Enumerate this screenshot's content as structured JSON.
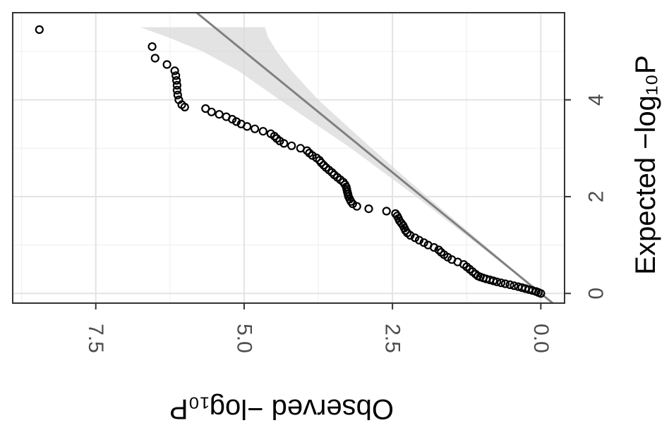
{
  "chart_data": {
    "type": "scatter",
    "title": "",
    "orientation": "rotated 90 degrees; observed axis runs horizontally (decreasing to the right), expected axis runs vertically on the right side",
    "xlabel": "Expected −log₁₀P",
    "ylabel": "Observed −log₁₀P",
    "xlim": [
      -0.2,
      5.8
    ],
    "ylim": [
      -0.4,
      8.9
    ],
    "x_ticks": [
      "0",
      "2",
      "4"
    ],
    "y_ticks": [
      "0.0",
      "2.5",
      "5.0",
      "7.5"
    ],
    "grid": true,
    "legend": "none",
    "reference_line": {
      "slope": 1,
      "intercept": 0,
      "color": "#808080"
    },
    "confidence_band": {
      "color": "#d9d9d9",
      "x": [
        0.0,
        1.0,
        2.0,
        3.0,
        4.0,
        4.6,
        5.0,
        5.3,
        5.5
      ],
      "lower": [
        0.0,
        0.95,
        1.92,
        2.85,
        3.75,
        4.2,
        4.45,
        4.6,
        4.65
      ],
      "upper": [
        0.0,
        1.05,
        2.1,
        3.2,
        4.4,
        5.1,
        5.7,
        6.3,
        6.75
      ]
    },
    "series": [
      {
        "marker": "open-circle",
        "color": "#000000",
        "points": [
          [
            0.0,
            0.0
          ],
          [
            0.02,
            0.04
          ],
          [
            0.04,
            0.08
          ],
          [
            0.06,
            0.14
          ],
          [
            0.08,
            0.2
          ],
          [
            0.1,
            0.26
          ],
          [
            0.12,
            0.32
          ],
          [
            0.14,
            0.38
          ],
          [
            0.16,
            0.45
          ],
          [
            0.18,
            0.52
          ],
          [
            0.2,
            0.6
          ],
          [
            0.22,
            0.67
          ],
          [
            0.24,
            0.74
          ],
          [
            0.26,
            0.8
          ],
          [
            0.28,
            0.86
          ],
          [
            0.3,
            0.92
          ],
          [
            0.32,
            0.97
          ],
          [
            0.34,
            1.02
          ],
          [
            0.36,
            1.06
          ],
          [
            0.4,
            1.1
          ],
          [
            0.45,
            1.15
          ],
          [
            0.5,
            1.2
          ],
          [
            0.55,
            1.25
          ],
          [
            0.6,
            1.3
          ],
          [
            0.65,
            1.4
          ],
          [
            0.7,
            1.5
          ],
          [
            0.75,
            1.57
          ],
          [
            0.8,
            1.63
          ],
          [
            0.85,
            1.68
          ],
          [
            0.9,
            1.72
          ],
          [
            0.95,
            1.8
          ],
          [
            1.0,
            1.9
          ],
          [
            1.05,
            1.97
          ],
          [
            1.1,
            2.05
          ],
          [
            1.15,
            2.12
          ],
          [
            1.2,
            2.2
          ],
          [
            1.25,
            2.25
          ],
          [
            1.3,
            2.28
          ],
          [
            1.35,
            2.3
          ],
          [
            1.4,
            2.32
          ],
          [
            1.45,
            2.35
          ],
          [
            1.5,
            2.38
          ],
          [
            1.55,
            2.4
          ],
          [
            1.6,
            2.42
          ],
          [
            1.65,
            2.45
          ],
          [
            1.7,
            2.6
          ],
          [
            1.75,
            2.9
          ],
          [
            1.8,
            3.1
          ],
          [
            1.85,
            3.17
          ],
          [
            1.9,
            3.2
          ],
          [
            1.95,
            3.22
          ],
          [
            2.0,
            3.24
          ],
          [
            2.05,
            3.25
          ],
          [
            2.1,
            3.26
          ],
          [
            2.15,
            3.27
          ],
          [
            2.2,
            3.28
          ],
          [
            2.25,
            3.3
          ],
          [
            2.3,
            3.33
          ],
          [
            2.35,
            3.38
          ],
          [
            2.4,
            3.43
          ],
          [
            2.45,
            3.48
          ],
          [
            2.5,
            3.52
          ],
          [
            2.55,
            3.57
          ],
          [
            2.6,
            3.62
          ],
          [
            2.65,
            3.66
          ],
          [
            2.7,
            3.7
          ],
          [
            2.75,
            3.73
          ],
          [
            2.8,
            3.78
          ],
          [
            2.85,
            3.85
          ],
          [
            2.9,
            3.9
          ],
          [
            2.95,
            3.94
          ],
          [
            3.0,
            4.05
          ],
          [
            3.05,
            4.2
          ],
          [
            3.1,
            4.33
          ],
          [
            3.15,
            4.4
          ],
          [
            3.2,
            4.45
          ],
          [
            3.25,
            4.49
          ],
          [
            3.3,
            4.55
          ],
          [
            3.35,
            4.68
          ],
          [
            3.4,
            4.82
          ],
          [
            3.45,
            4.95
          ],
          [
            3.5,
            5.05
          ],
          [
            3.55,
            5.13
          ],
          [
            3.6,
            5.2
          ],
          [
            3.65,
            5.3
          ],
          [
            3.7,
            5.42
          ],
          [
            3.75,
            5.55
          ],
          [
            3.82,
            5.65
          ],
          [
            3.85,
            6.0
          ],
          [
            3.9,
            6.05
          ],
          [
            4.0,
            6.1
          ],
          [
            4.1,
            6.12
          ],
          [
            4.2,
            6.13
          ],
          [
            4.3,
            6.13
          ],
          [
            4.4,
            6.14
          ],
          [
            4.5,
            6.15
          ],
          [
            4.6,
            6.17
          ],
          [
            4.73,
            6.3
          ],
          [
            4.86,
            6.5
          ],
          [
            5.1,
            6.55
          ],
          [
            5.45,
            8.45
          ]
        ]
      }
    ]
  }
}
